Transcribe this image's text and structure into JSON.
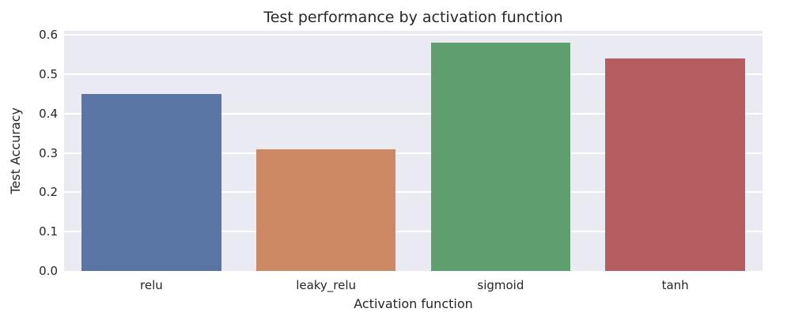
{
  "chart_data": {
    "type": "bar",
    "title": "Test performance by activation function",
    "xlabel": "Activation function",
    "ylabel": "Test Accuracy",
    "categories": [
      "relu",
      "leaky_relu",
      "sigmoid",
      "tanh"
    ],
    "values": [
      0.45,
      0.31,
      0.58,
      0.54
    ],
    "bar_colors": [
      "#5875a3",
      "#cc8963",
      "#5f9e6e",
      "#b55d60"
    ],
    "yticks": [
      0,
      0.1,
      0.2,
      0.3,
      0.4,
      0.5,
      0.6
    ],
    "ylim": [
      0,
      0.61
    ],
    "bar_width_fraction": 0.8,
    "grid": true,
    "legend_position": "none",
    "plot_background": "#eaeaf2",
    "grid_color": "#ffffff",
    "figure_background": "#ffffff",
    "text_color": "#262626"
  }
}
